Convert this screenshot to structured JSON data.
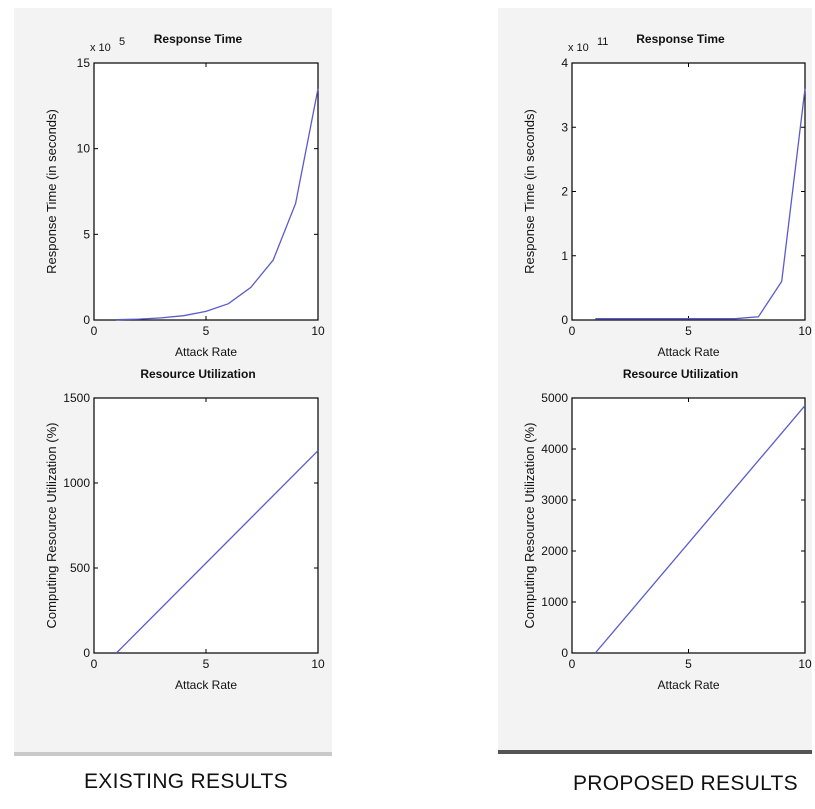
{
  "captions": {
    "existing": "EXISTING RESULTS",
    "proposed": "PROPOSED RESULTS"
  },
  "colors": {
    "line": "#5a5acd",
    "axes": "#000000",
    "panel": "#f3f3f3"
  },
  "chart_data": [
    {
      "type": "line",
      "group": "EXISTING RESULTS",
      "title": "Response Time",
      "xlabel": "Attack Rate",
      "ylabel": "Response Time (in seconds)",
      "multiplier": "x 10",
      "multiplier_exp": "5",
      "xlim": [
        0,
        10
      ],
      "ylim": [
        0,
        15
      ],
      "xticks": [
        "0",
        "5",
        "10"
      ],
      "yticks": [
        "0",
        "5",
        "10",
        "15"
      ],
      "grid": false,
      "series": [
        {
          "x": [
            1,
            2,
            3,
            4,
            5,
            6,
            7,
            8,
            9,
            10
          ],
          "y": [
            0.02,
            0.05,
            0.12,
            0.25,
            0.5,
            0.95,
            1.9,
            3.5,
            6.8,
            13.5
          ]
        }
      ]
    },
    {
      "type": "line",
      "group": "EXISTING RESULTS",
      "title": "Resource Utilization",
      "xlabel": "Attack Rate",
      "ylabel": "Computing Resource Utilization (%)",
      "xlim": [
        0,
        10
      ],
      "ylim": [
        0,
        1500
      ],
      "xticks": [
        "0",
        "5",
        "10"
      ],
      "yticks": [
        "0",
        "500",
        "1000",
        "1500"
      ],
      "grid": false,
      "series": [
        {
          "x": [
            1,
            10
          ],
          "y": [
            0,
            1190
          ]
        }
      ]
    },
    {
      "type": "line",
      "group": "PROPOSED RESULTS",
      "title": "Response Time",
      "xlabel": "Attack Rate",
      "ylabel": "Response Time (in seconds)",
      "multiplier": "x 10",
      "multiplier_exp": "11",
      "xlim": [
        0,
        10
      ],
      "ylim": [
        0,
        4
      ],
      "xticks": [
        "0",
        "5",
        "10"
      ],
      "yticks": [
        "0",
        "1",
        "2",
        "3",
        "4"
      ],
      "grid": false,
      "series": [
        {
          "x": [
            1,
            2,
            3,
            4,
            5,
            6,
            7,
            8,
            9,
            10
          ],
          "y": [
            0.02,
            0.02,
            0.02,
            0.02,
            0.02,
            0.02,
            0.02,
            0.05,
            0.6,
            3.6
          ]
        }
      ]
    },
    {
      "type": "line",
      "group": "PROPOSED RESULTS",
      "title": "Resource Utilization",
      "xlabel": "Attack Rate",
      "ylabel": "Computing Resource Utilization (%)",
      "xlim": [
        0,
        10
      ],
      "ylim": [
        0,
        5000
      ],
      "xticks": [
        "0",
        "5",
        "10"
      ],
      "yticks": [
        "0",
        "1000",
        "2000",
        "3000",
        "4000",
        "5000"
      ],
      "grid": false,
      "series": [
        {
          "x": [
            1,
            10
          ],
          "y": [
            0,
            4850
          ]
        }
      ]
    }
  ]
}
